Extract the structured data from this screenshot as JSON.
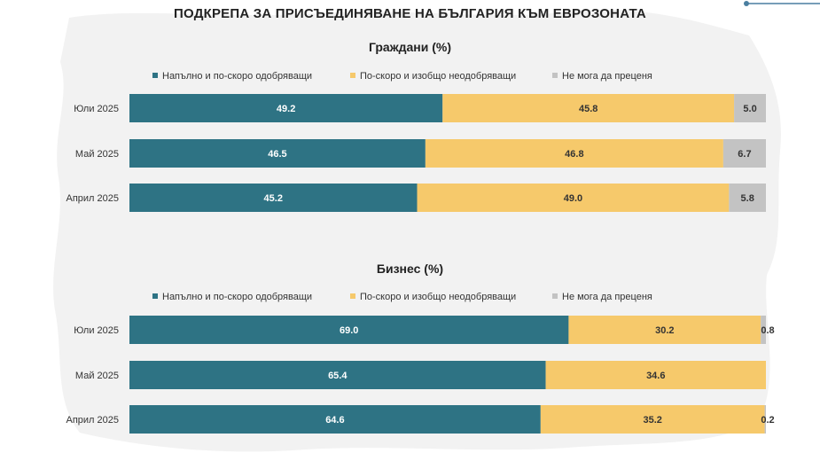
{
  "title": "ПОДКРЕПА ЗА ПРИСЪЕДИНЯВАНЕ НА БЪЛГАРИЯ КЪМ ЕВРОЗОНАТА",
  "colors": {
    "approve": "#2e7384",
    "disapprove": "#f6c96b",
    "cannot_judge": "#c3c3c3",
    "accent": "#4a7fa0"
  },
  "chart_data": [
    {
      "type": "bar",
      "orientation": "horizontal",
      "stacked": true,
      "title": "Граждани (%)",
      "categories": [
        "Юли 2025",
        "Май 2025",
        "Април 2025"
      ],
      "series": [
        {
          "name": "Напълно и по-скоро одобряващи",
          "values": [
            49.2,
            46.5,
            45.2
          ],
          "color": "#2e7384",
          "label_color": "#ffffff"
        },
        {
          "name": "По-скоро и изобщо неодобряващи",
          "values": [
            45.8,
            46.8,
            49.0
          ],
          "color": "#f6c96b",
          "label_color": "#333333"
        },
        {
          "name": "Не мога да преценя",
          "values": [
            5.0,
            6.7,
            5.8
          ],
          "color": "#c3c3c3",
          "label_color": "#333333"
        }
      ],
      "labels": [
        [
          "49.2",
          "45.8",
          "5.0"
        ],
        [
          "46.5",
          "46.8",
          "6.7"
        ],
        [
          "45.2",
          "49.0",
          "5.8"
        ]
      ],
      "xlim": [
        0,
        100
      ],
      "legend": "top"
    },
    {
      "type": "bar",
      "orientation": "horizontal",
      "stacked": true,
      "title": "Бизнес (%)",
      "categories": [
        "Юли 2025",
        "Май 2025",
        "Април 2025"
      ],
      "series": [
        {
          "name": "Напълно и по-скоро одобряващи",
          "values": [
            69.0,
            65.4,
            64.6
          ],
          "color": "#2e7384",
          "label_color": "#ffffff"
        },
        {
          "name": "По-скоро и изобщо неодобряващи",
          "values": [
            30.2,
            34.6,
            35.2
          ],
          "color": "#f6c96b",
          "label_color": "#333333"
        },
        {
          "name": "Не мога да преценя",
          "values": [
            0.8,
            0,
            0.2
          ],
          "color": "#c3c3c3",
          "label_color": "#333333"
        }
      ],
      "labels": [
        [
          "69.0",
          "30.2",
          "0.8"
        ],
        [
          "65.4",
          "34.6",
          ""
        ],
        [
          "64.6",
          "35.2",
          "0.2"
        ]
      ],
      "xlim": [
        0,
        100
      ],
      "legend": "top"
    }
  ]
}
